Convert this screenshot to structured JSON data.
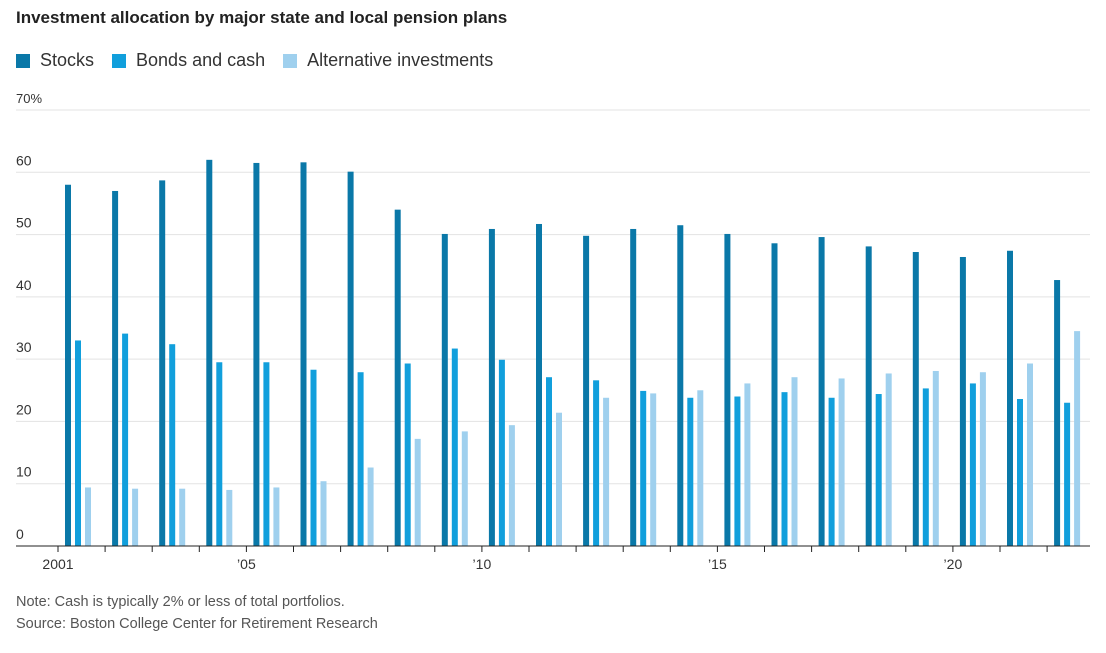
{
  "chart_data": {
    "type": "bar",
    "title": "Investment allocation by major state and local pension plans",
    "x": [
      2001,
      2002,
      2003,
      2004,
      2005,
      2006,
      2007,
      2008,
      2009,
      2010,
      2011,
      2012,
      2013,
      2014,
      2015,
      2016,
      2017,
      2018,
      2019,
      2020,
      2021,
      2022
    ],
    "series": [
      {
        "name": "Stocks",
        "color": "#0a78a8",
        "values": [
          58,
          57,
          58.7,
          62,
          61.5,
          61.6,
          60.1,
          54,
          50.1,
          50.9,
          51.7,
          49.8,
          50.9,
          51.5,
          50.1,
          48.6,
          49.6,
          48.1,
          47.2,
          46.4,
          47.4,
          42.7
        ]
      },
      {
        "name": "Bonds and cash",
        "color": "#119fdc",
        "values": [
          33,
          34.1,
          32.4,
          29.5,
          29.5,
          28.3,
          27.9,
          29.3,
          31.7,
          29.9,
          27.1,
          26.6,
          24.9,
          23.8,
          24,
          24.7,
          23.8,
          24.4,
          25.3,
          26.1,
          23.6,
          23
        ]
      },
      {
        "name": "Alternative investments",
        "color": "#9fd0ee",
        "values": [
          9.4,
          9.2,
          9.2,
          9,
          9.4,
          10.4,
          12.6,
          17.2,
          18.4,
          19.4,
          21.4,
          23.8,
          24.5,
          25,
          26.1,
          27.1,
          26.9,
          27.7,
          28.1,
          27.9,
          29.3,
          34.5
        ]
      }
    ],
    "ylim": [
      0,
      70
    ],
    "y_ticks": [
      0,
      10,
      20,
      30,
      40,
      50,
      60,
      70
    ],
    "y_tick_labels": [
      "0",
      "10",
      "20",
      "30",
      "40",
      "50",
      "60",
      "70%"
    ],
    "x_ticks": [
      {
        "x": 2001,
        "label": "2001"
      },
      {
        "x": 2005,
        "label": "’05"
      },
      {
        "x": 2010,
        "label": "’10"
      },
      {
        "x": 2015,
        "label": "’15"
      },
      {
        "x": 2020,
        "label": "’20"
      }
    ],
    "grid": true,
    "legend_position": "top-left"
  },
  "note": "Note: Cash is typically 2% or less of total portfolios.",
  "source": "Source: Boston College Center for Retirement Research",
  "colors": {
    "axis": "#222222",
    "grid": "#e3e3e3",
    "tick_text": "#333333"
  }
}
